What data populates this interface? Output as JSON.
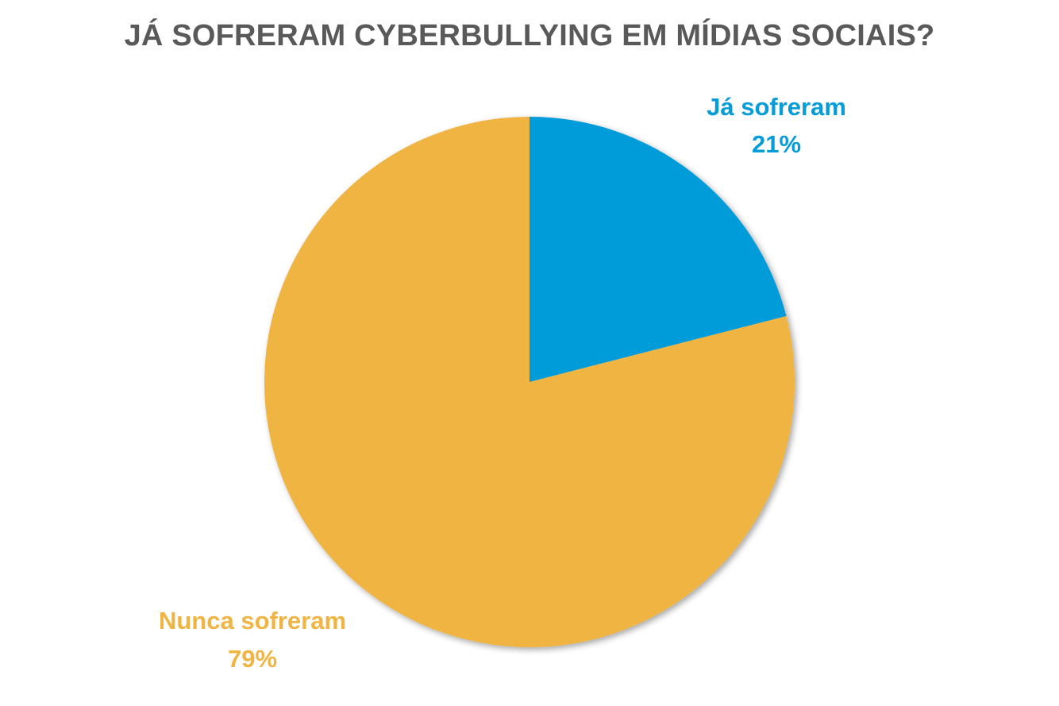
{
  "chart_data": {
    "type": "pie",
    "title": "JÁ SOFRERAM CYBERBULLYING EM MÍDIAS SOCIAIS?",
    "slices": [
      {
        "label": "Já sofreram",
        "value": 21,
        "value_label": "21%",
        "color": "#069CD9"
      },
      {
        "label": "Nunca sofreram",
        "value": 79,
        "value_label": "79%",
        "color": "#F0B443"
      }
    ],
    "legend": "none",
    "data_labels": "outside, colored to match slice"
  }
}
